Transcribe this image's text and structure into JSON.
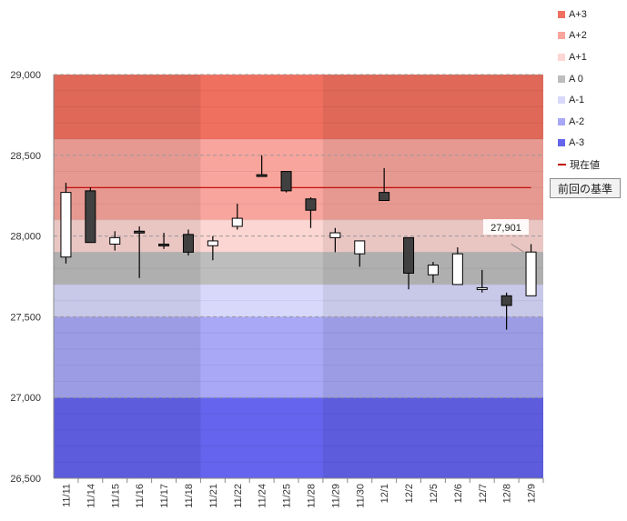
{
  "legend": [
    {
      "label": "A+3",
      "color": "#f07060"
    },
    {
      "label": "A+2",
      "color": "#f8a59d"
    },
    {
      "label": "A+1",
      "color": "#fcd6d2"
    },
    {
      "label": "A 0",
      "color": "#bdbdbd"
    },
    {
      "label": "A-1",
      "color": "#d8d8fb"
    },
    {
      "label": "A-2",
      "color": "#a8a8f6"
    },
    {
      "label": "A-3",
      "color": "#6464ee"
    },
    {
      "label": "現在値",
      "color": "#c00000",
      "kind": "line"
    }
  ],
  "prev_button_label": "前回の基準",
  "chart_data": {
    "type": "candlestick",
    "categories": [
      "11/11",
      "11/14",
      "11/15",
      "11/16",
      "11/17",
      "11/18",
      "11/21",
      "11/22",
      "11/24",
      "11/25",
      "11/28",
      "11/29",
      "11/30",
      "12/1",
      "12/2",
      "12/5",
      "12/6",
      "12/7",
      "12/8",
      "12/9"
    ],
    "ohlc": [
      {
        "o": 27870,
        "h": 28330,
        "l": 27830,
        "c": 28270
      },
      {
        "o": 28280,
        "h": 28300,
        "l": 27960,
        "c": 27960
      },
      {
        "o": 27950,
        "h": 28030,
        "l": 27910,
        "c": 27990
      },
      {
        "o": 28030,
        "h": 28060,
        "l": 27740,
        "c": 28020
      },
      {
        "o": 27950,
        "h": 28020,
        "l": 27920,
        "c": 27940
      },
      {
        "o": 28010,
        "h": 28040,
        "l": 27880,
        "c": 27900
      },
      {
        "o": 27940,
        "h": 28000,
        "l": 27850,
        "c": 27970
      },
      {
        "o": 28060,
        "h": 28200,
        "l": 28040,
        "c": 28110
      },
      {
        "o": 28380,
        "h": 28500,
        "l": 28370,
        "c": 28370
      },
      {
        "o": 28400,
        "h": 28400,
        "l": 28270,
        "c": 28280
      },
      {
        "o": 28230,
        "h": 28240,
        "l": 28050,
        "c": 28160
      },
      {
        "o": 27990,
        "h": 28050,
        "l": 27900,
        "c": 28020
      },
      {
        "o": 27890,
        "h": 27970,
        "l": 27810,
        "c": 27970
      },
      {
        "o": 28270,
        "h": 28420,
        "l": 28220,
        "c": 28220
      },
      {
        "o": 27990,
        "h": 27990,
        "l": 27670,
        "c": 27770
      },
      {
        "o": 27760,
        "h": 27840,
        "l": 27710,
        "c": 27820
      },
      {
        "o": 27700,
        "h": 27930,
        "l": 27700,
        "c": 27890
      },
      {
        "o": 27670,
        "h": 27790,
        "l": 27650,
        "c": 27680
      },
      {
        "o": 27630,
        "h": 27650,
        "l": 27420,
        "c": 27570
      },
      {
        "o": 27630,
        "h": 27950,
        "l": 27630,
        "c": 27901
      }
    ],
    "ylim": [
      26500,
      29000
    ],
    "yticks": [
      "26,500",
      "27,000",
      "27,500",
      "28,000",
      "28,500",
      "29,000"
    ],
    "ytick_values": [
      26500,
      27000,
      27500,
      28000,
      28500,
      29000
    ],
    "bands": [
      {
        "label": "A+3",
        "from": 28600,
        "to": 29000
      },
      {
        "label": "A+2",
        "from": 28100,
        "to": 28600
      },
      {
        "label": "A+1",
        "from": 27900,
        "to": 28100
      },
      {
        "label": "A 0",
        "from": 27700,
        "to": 27900
      },
      {
        "label": "A-1",
        "from": 27500,
        "to": 27700
      },
      {
        "label": "A-2",
        "from": 27000,
        "to": 27500
      },
      {
        "label": "A-3",
        "from": 26500,
        "to": 27000
      }
    ],
    "band_colors": {
      "A+3": "#f07060",
      "A+2": "#f8a59d",
      "A+1": "#fcd6d2",
      "A 0": "#bdbdbd",
      "A-1": "#d8d8fb",
      "A-2": "#a8a8f6",
      "A-3": "#6464ee"
    },
    "week_shading_groups": [
      [
        1,
        5
      ],
      [
        11,
        14
      ]
    ],
    "current_value_line": {
      "from_index": 0,
      "to_index": 19,
      "value": 28300,
      "color": "#c00000"
    },
    "last_value_label": "27,901",
    "up_color": "#ffffff",
    "down_color": "#404040",
    "grid": true
  }
}
